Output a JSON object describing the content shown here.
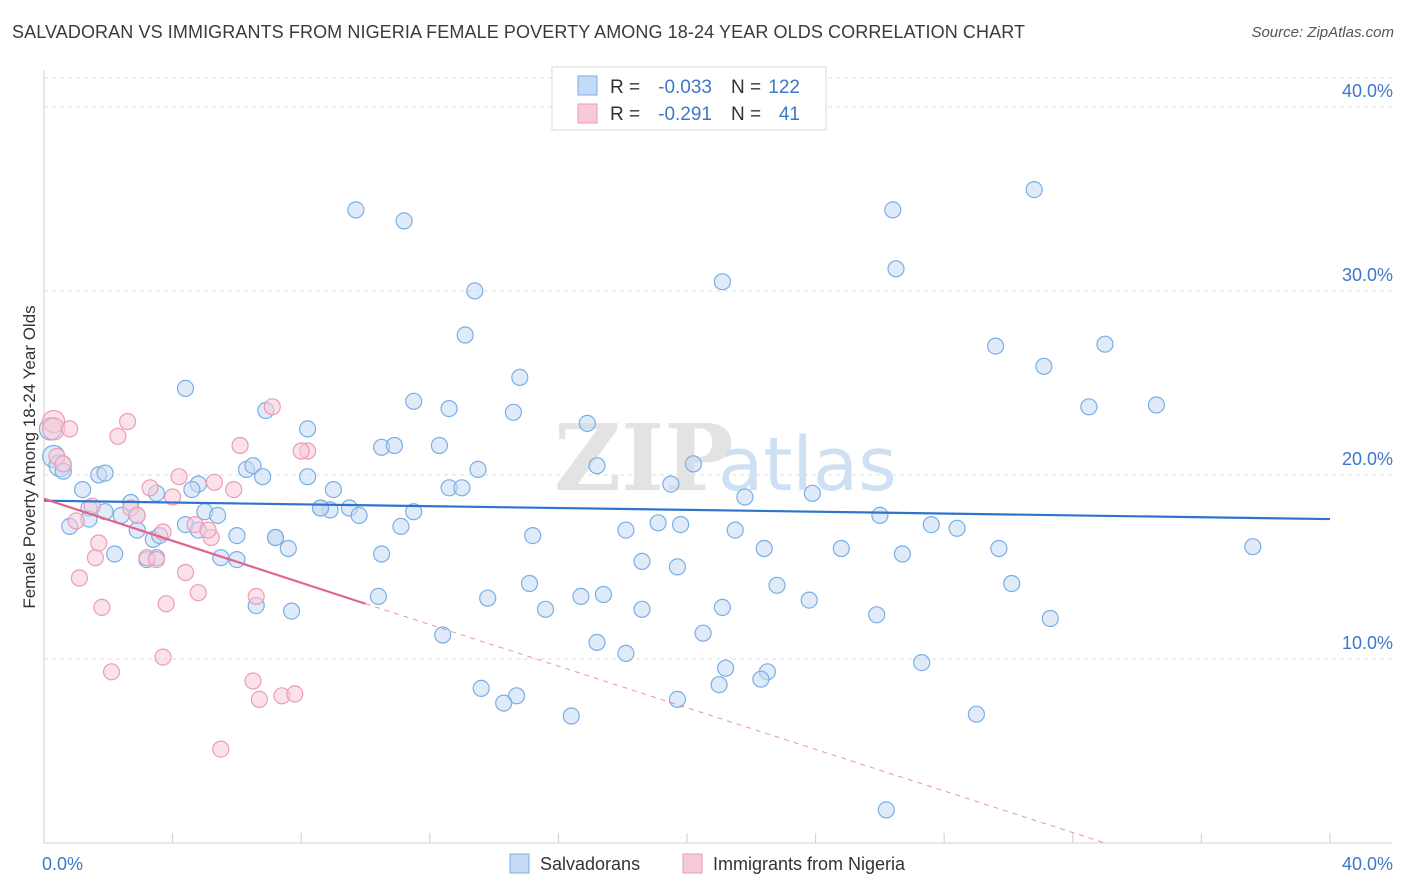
{
  "title": "SALVADORAN VS IMMIGRANTS FROM NIGERIA FEMALE POVERTY AMONG 18-24 YEAR OLDS CORRELATION CHART",
  "source": "Source: ZipAtlas.com",
  "watermark": {
    "zip": "ZIP",
    "atlas": "atlas"
  },
  "chart_data": {
    "type": "scatter",
    "title": "SALVADORAN VS IMMIGRANTS FROM NIGERIA FEMALE POVERTY AMONG 18-24 YEAR OLDS CORRELATION CHART",
    "xlabel": "",
    "ylabel": "Female Poverty Among 18-24 Year Olds",
    "xlim": [
      0,
      40
    ],
    "ylim": [
      0,
      42
    ],
    "x_tick_labels": [
      "0.0%",
      "40.0%"
    ],
    "y_ticks": [
      10,
      20,
      30,
      40
    ],
    "y_tick_labels": [
      "10.0%",
      "20.0%",
      "30.0%",
      "40.0%"
    ],
    "grid": true,
    "legend": {
      "position": "top-center",
      "rows": [
        {
          "r_label": "R =",
          "r_value": "-0.033",
          "n_label": "N =",
          "n_value": "122"
        },
        {
          "r_label": "R =",
          "r_value": "-0.291",
          "n_label": "N =",
          "n_value": "41"
        }
      ]
    },
    "series": [
      {
        "name": "Salvadorans",
        "color": "#7aaee6",
        "fill": "#c5daf4",
        "line_color": "#2f74cc",
        "trend": {
          "x0": 0,
          "y0": 18.6,
          "x1": 40,
          "y1": 17.6
        },
        "points": [
          [
            0.2,
            22.5
          ],
          [
            0.3,
            21.0
          ],
          [
            0.5,
            20.5
          ],
          [
            0.6,
            20.2
          ],
          [
            0.8,
            17.2
          ],
          [
            1.2,
            19.2
          ],
          [
            1.4,
            18.2
          ],
          [
            1.7,
            20.0
          ],
          [
            1.9,
            18.0
          ],
          [
            2.2,
            15.7
          ],
          [
            2.7,
            18.5
          ],
          [
            2.9,
            17.8
          ],
          [
            2.4,
            17.8
          ],
          [
            3.4,
            16.5
          ],
          [
            3.6,
            16.7
          ],
          [
            3.5,
            15.5
          ],
          [
            4.4,
            17.3
          ],
          [
            4.8,
            19.5
          ],
          [
            5.0,
            18.0
          ],
          [
            5.5,
            15.5
          ],
          [
            5.4,
            17.8
          ],
          [
            6.0,
            16.7
          ],
          [
            6.3,
            20.3
          ],
          [
            6.5,
            20.5
          ],
          [
            6.8,
            19.9
          ],
          [
            7.2,
            16.6
          ],
          [
            7.6,
            16.0
          ],
          [
            8.9,
            18.1
          ],
          [
            8.2,
            19.9
          ],
          [
            8.6,
            18.2
          ],
          [
            8.2,
            22.5
          ],
          [
            9.0,
            19.2
          ],
          [
            9.5,
            18.2
          ],
          [
            10.5,
            21.5
          ],
          [
            10.9,
            21.6
          ],
          [
            11.5,
            18.0
          ],
          [
            12.3,
            21.6
          ],
          [
            12.6,
            19.3
          ],
          [
            13.1,
            27.6
          ],
          [
            13.0,
            19.3
          ],
          [
            13.4,
            30.0
          ],
          [
            14.6,
            23.4
          ],
          [
            14.8,
            25.3
          ],
          [
            15.2,
            16.7
          ],
          [
            16.9,
            22.8
          ],
          [
            17.2,
            20.5
          ],
          [
            18.1,
            17.0
          ],
          [
            18.6,
            15.3
          ],
          [
            19.1,
            17.4
          ],
          [
            19.8,
            17.3
          ],
          [
            19.5,
            19.5
          ],
          [
            20.2,
            20.6
          ],
          [
            21.1,
            30.5
          ],
          [
            21.5,
            17.0
          ],
          [
            21.8,
            18.8
          ],
          [
            22.4,
            16.0
          ],
          [
            23.9,
            19.0
          ],
          [
            24.8,
            16.0
          ],
          [
            26.0,
            17.8
          ],
          [
            26.7,
            15.7
          ],
          [
            26.5,
            31.2
          ],
          [
            26.4,
            34.4
          ],
          [
            27.6,
            17.3
          ],
          [
            28.4,
            17.1
          ],
          [
            29.7,
            16.0
          ],
          [
            29.6,
            27.0
          ],
          [
            31.1,
            25.9
          ],
          [
            32.5,
            23.7
          ],
          [
            33.0,
            27.1
          ],
          [
            34.6,
            23.8
          ],
          [
            37.6,
            16.1
          ],
          [
            30.8,
            35.5
          ],
          [
            31.3,
            12.2
          ],
          [
            30.1,
            14.1
          ],
          [
            29.0,
            7.0
          ],
          [
            27.3,
            9.8
          ],
          [
            26.2,
            1.8
          ],
          [
            25.9,
            12.4
          ],
          [
            23.8,
            13.2
          ],
          [
            22.8,
            14.0
          ],
          [
            22.5,
            9.3
          ],
          [
            22.3,
            8.9
          ],
          [
            21.1,
            12.8
          ],
          [
            21.2,
            9.5
          ],
          [
            21.0,
            8.6
          ],
          [
            20.5,
            11.4
          ],
          [
            19.7,
            15.0
          ],
          [
            19.7,
            7.8
          ],
          [
            18.6,
            12.7
          ],
          [
            18.1,
            10.3
          ],
          [
            17.4,
            13.5
          ],
          [
            17.2,
            10.9
          ],
          [
            16.7,
            13.4
          ],
          [
            16.4,
            6.9
          ],
          [
            15.6,
            12.7
          ],
          [
            15.1,
            14.1
          ],
          [
            14.7,
            8.0
          ],
          [
            14.3,
            7.6
          ],
          [
            13.6,
            8.4
          ],
          [
            13.8,
            13.3
          ],
          [
            12.4,
            11.3
          ],
          [
            11.1,
            17.2
          ],
          [
            10.5,
            15.7
          ],
          [
            10.4,
            13.4
          ],
          [
            9.8,
            17.8
          ],
          [
            8.6,
            18.2
          ],
          [
            7.7,
            12.6
          ],
          [
            7.2,
            16.6
          ],
          [
            6.6,
            12.9
          ],
          [
            6.0,
            15.4
          ],
          [
            4.8,
            17.0
          ],
          [
            4.4,
            24.7
          ],
          [
            4.6,
            19.2
          ],
          [
            3.5,
            19.0
          ],
          [
            3.2,
            15.4
          ],
          [
            2.9,
            17.0
          ],
          [
            1.9,
            20.1
          ],
          [
            1.4,
            17.6
          ],
          [
            9.7,
            34.4
          ],
          [
            11.2,
            33.8
          ],
          [
            12.6,
            23.6
          ],
          [
            13.5,
            20.3
          ],
          [
            11.5,
            24.0
          ],
          [
            6.9,
            23.5
          ]
        ]
      },
      {
        "name": "Immigrants from Nigeria",
        "color": "#ee9bb5",
        "fill": "#f8cad8",
        "line_color": "#e0648f",
        "trend": {
          "x0": 0,
          "y0": 18.7,
          "x1": 10,
          "y1": 13.0
        },
        "trend_dashed": {
          "x0": 10,
          "y0": 13.0,
          "x1": 33,
          "y1": 0.0
        },
        "points": [
          [
            0.3,
            22.9
          ],
          [
            0.3,
            22.5
          ],
          [
            0.4,
            21.0
          ],
          [
            0.6,
            20.6
          ],
          [
            0.8,
            22.5
          ],
          [
            1.0,
            17.5
          ],
          [
            1.1,
            14.4
          ],
          [
            1.5,
            18.3
          ],
          [
            1.6,
            15.5
          ],
          [
            1.8,
            12.8
          ],
          [
            1.7,
            16.3
          ],
          [
            2.1,
            9.3
          ],
          [
            2.3,
            22.1
          ],
          [
            2.6,
            22.9
          ],
          [
            2.7,
            18.2
          ],
          [
            2.9,
            17.8
          ],
          [
            3.2,
            15.5
          ],
          [
            3.3,
            19.3
          ],
          [
            3.5,
            15.4
          ],
          [
            3.7,
            10.1
          ],
          [
            3.8,
            13.0
          ],
          [
            4.0,
            18.8
          ],
          [
            4.2,
            19.9
          ],
          [
            4.4,
            14.7
          ],
          [
            4.7,
            17.3
          ],
          [
            4.8,
            13.6
          ],
          [
            5.2,
            16.6
          ],
          [
            5.3,
            19.6
          ],
          [
            5.5,
            5.1
          ],
          [
            5.9,
            19.2
          ],
          [
            6.1,
            21.6
          ],
          [
            6.6,
            13.4
          ],
          [
            6.7,
            7.8
          ],
          [
            6.5,
            8.8
          ],
          [
            7.1,
            23.7
          ],
          [
            7.4,
            8.0
          ],
          [
            7.8,
            8.1
          ],
          [
            8.2,
            21.3
          ],
          [
            8.0,
            21.3
          ],
          [
            5.1,
            17.0
          ],
          [
            3.7,
            16.9
          ]
        ]
      }
    ]
  },
  "bottom_legend": [
    "Salvadorans",
    "Immigrants from Nigeria"
  ]
}
